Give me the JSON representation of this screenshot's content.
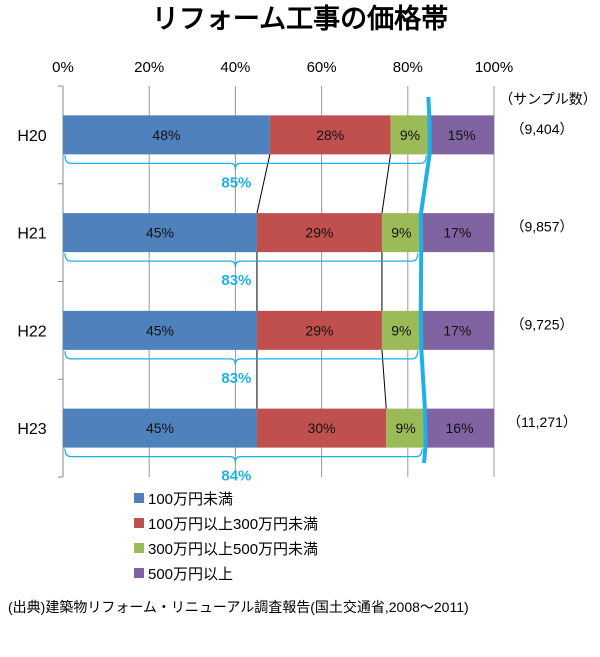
{
  "chart_data": {
    "type": "bar",
    "orientation": "horizontal-stacked-100",
    "title": "リフォーム工事の価格帯",
    "xlim": [
      0,
      100
    ],
    "x_ticks": [
      "0%",
      "20%",
      "40%",
      "60%",
      "80%",
      "100%"
    ],
    "categories": [
      "H20",
      "H21",
      "H22",
      "H23"
    ],
    "series": [
      {
        "name": "100万円未満",
        "color": "#4f81bd",
        "values": [
          48,
          45,
          45,
          45
        ]
      },
      {
        "name": "100万円以上300万円未満",
        "color": "#c0504d",
        "values": [
          28,
          29,
          29,
          30
        ]
      },
      {
        "name": "300万円以上500万円未満",
        "color": "#9bbb59",
        "values": [
          9,
          9,
          9,
          9
        ]
      },
      {
        "name": "500万円以上",
        "color": "#8064a2",
        "values": [
          15,
          17,
          17,
          16
        ]
      }
    ],
    "sample_header": "（サンプル数）",
    "sample_sizes": [
      "（9,404）",
      "（9,857）",
      "（9,725）",
      "（11,271）"
    ],
    "under_5m_totals": [
      "85%",
      "83%",
      "83%",
      "84%"
    ],
    "under_5m_values": [
      85,
      83,
      83,
      84
    ],
    "annotation_color": "#1fb0e6",
    "grid": true,
    "legend_placement": "bottom-left",
    "source": "(出典)建築物リフォーム・リニューアル調査報告(国土交通省,2008〜2011)"
  }
}
